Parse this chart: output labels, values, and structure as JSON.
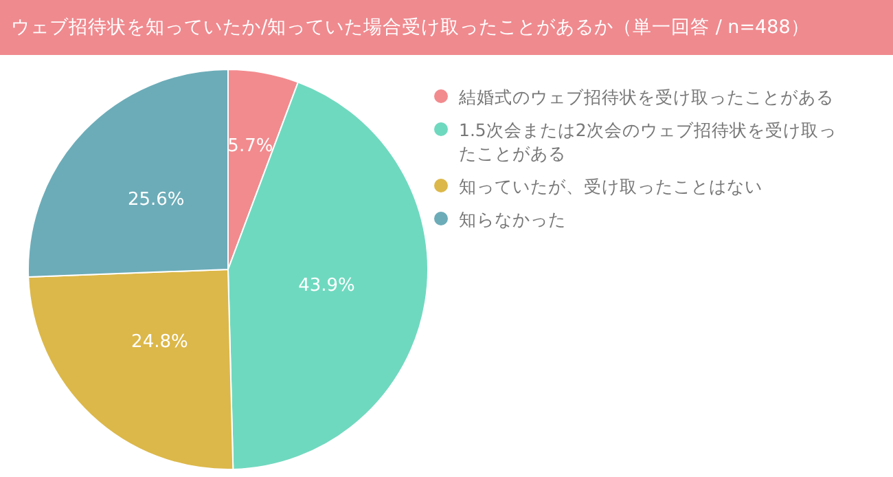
{
  "chart_data": {
    "type": "pie",
    "title": "ウェブ招待状を知っていたか/知っていた場合受け取ったことがあるか（単一回答 / n=488）",
    "categories": [
      "結婚式のウェブ招待状を受け取ったことがある",
      "1.5次会または2次会のウェブ招待状を受け取ったことがある",
      "知っていたが、受け取ったことはない",
      "知らなかった"
    ],
    "values": [
      5.7,
      43.9,
      24.8,
      25.6
    ],
    "colors": [
      "#f28b8e",
      "#6fd9bf",
      "#dcb84a",
      "#6cacb8"
    ],
    "value_labels": [
      "5.7%",
      "43.9%",
      "24.8%",
      "25.6%"
    ],
    "legend": "right"
  }
}
